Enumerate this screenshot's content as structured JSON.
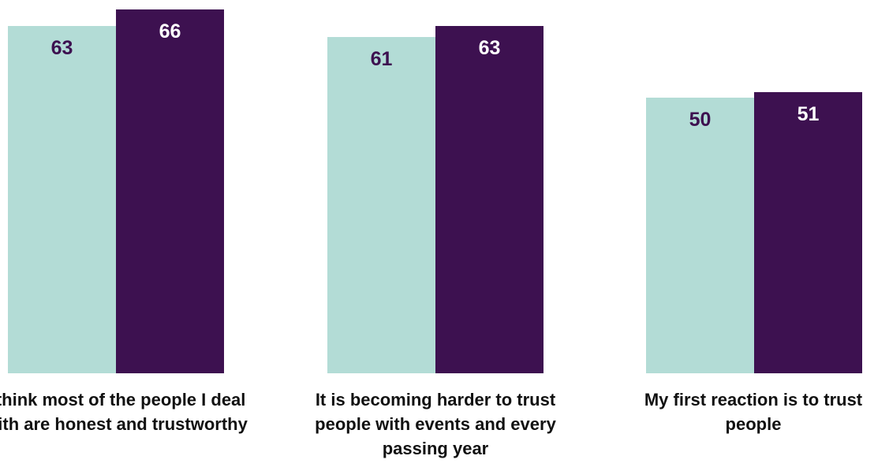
{
  "chart_data": {
    "type": "bar",
    "categories": [
      "I think most of the people I deal with are honest and trustworthy",
      "It is becoming harder to trust people with events and every passing year",
      "My first reaction is to trust people"
    ],
    "category_label_lines": [
      [
        "I think most of the people I deal",
        "with are honest and trustworthy"
      ],
      [
        "It is becoming harder to trust",
        "people with events and every",
        "passing year"
      ],
      [
        "My first reaction is to trust",
        "people"
      ]
    ],
    "series": [
      {
        "values": [
          63,
          61,
          50
        ],
        "color": "#b3dcd6",
        "label_color": "#3d1150"
      },
      {
        "values": [
          66,
          63,
          51
        ],
        "color": "#3d1150",
        "label_color": "#ffffff"
      }
    ],
    "title": "",
    "xlabel": "",
    "ylabel": "",
    "ylim": [
      0,
      70
    ],
    "grid": false,
    "legend": "none"
  }
}
